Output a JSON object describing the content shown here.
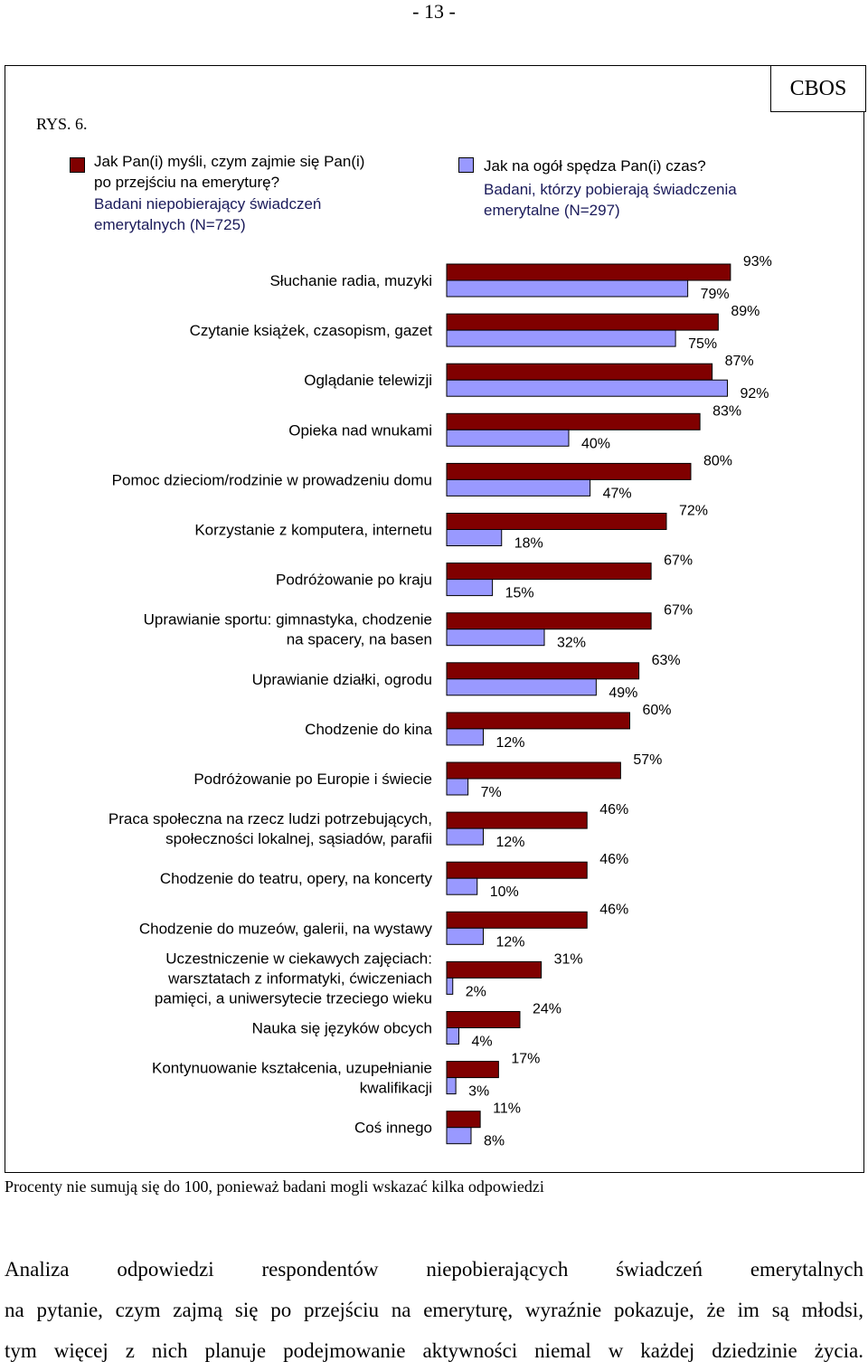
{
  "page_number": "- 13 -",
  "header": {
    "brand": "CBOS",
    "figure_label": "RYS. 6."
  },
  "legend": {
    "series1": {
      "question_lines": [
        "Jak Pan(i) myśli, czym zajmie się Pan(i)",
        "po przejściu na emeryturę?"
      ],
      "population_lines": [
        "Badani niepobierający świadczeń",
        "emerytalnych (N=725)"
      ]
    },
    "series2": {
      "question_lines": [
        "Jak na ogół spędza Pan(i) czas?"
      ],
      "population_lines": [
        "Badani, którzy pobierają świadczenia",
        "emerytalne (N=297)"
      ]
    }
  },
  "chart_data": {
    "type": "bar",
    "orientation": "horizontal",
    "xlim": [
      0,
      100
    ],
    "colors": {
      "series1": "#800000",
      "series2": "#9999ff"
    },
    "categories": [
      [
        "Słuchanie radia, muzyki"
      ],
      [
        "Czytanie książek, czasopism, gazet"
      ],
      [
        "Oglądanie telewizji"
      ],
      [
        "Opieka nad wnukami"
      ],
      [
        "Pomoc dzieciom/rodzinie w prowadzeniu domu"
      ],
      [
        "Korzystanie z komputera, internetu"
      ],
      [
        "Podróżowanie po kraju"
      ],
      [
        "Uprawianie sportu: gimnastyka, chodzenie",
        "na spacery, na basen"
      ],
      [
        "Uprawianie działki, ogrodu"
      ],
      [
        "Chodzenie do kina"
      ],
      [
        "Podróżowanie po Europie i świecie"
      ],
      [
        "Praca społeczna na rzecz ludzi potrzebujących,",
        "społeczności lokalnej, sąsiadów, parafii"
      ],
      [
        "Chodzenie do teatru, opery, na koncerty"
      ],
      [
        "Chodzenie do muzeów, galerii, na wystawy"
      ],
      [
        "Uczestniczenie w ciekawych zajęciach:",
        "warsztatach z informatyki, ćwiczeniach",
        "pamięci, a uniwersytecie trzeciego wieku"
      ],
      [
        "Nauka się języków obcych"
      ],
      [
        "Kontynuowanie kształcenia, uzupełnianie",
        "kwalifikacji"
      ],
      [
        "Coś innego"
      ]
    ],
    "series": [
      {
        "values": [
          93,
          89,
          87,
          83,
          80,
          72,
          67,
          67,
          63,
          60,
          57,
          46,
          46,
          46,
          31,
          24,
          17,
          11
        ]
      },
      {
        "values": [
          79,
          75,
          92,
          40,
          47,
          18,
          15,
          32,
          49,
          12,
          7,
          12,
          10,
          12,
          2,
          4,
          3,
          8
        ]
      }
    ],
    "value_suffix": "%"
  },
  "footnote": "Procenty nie sumują się do 100, ponieważ badani mogli wskazać kilka odpowiedzi",
  "body_text_lines": [
    "Analiza odpowiedzi respondentów niepobierających świadczeń emerytalnych",
    "na pytanie, czym zajmą się po przejściu na emeryturę, wyraźnie pokazuje, że im są młodsi,",
    "tym więcej z nich planuje podejmowanie aktywności niemal w każdej dziedzinie życia."
  ]
}
